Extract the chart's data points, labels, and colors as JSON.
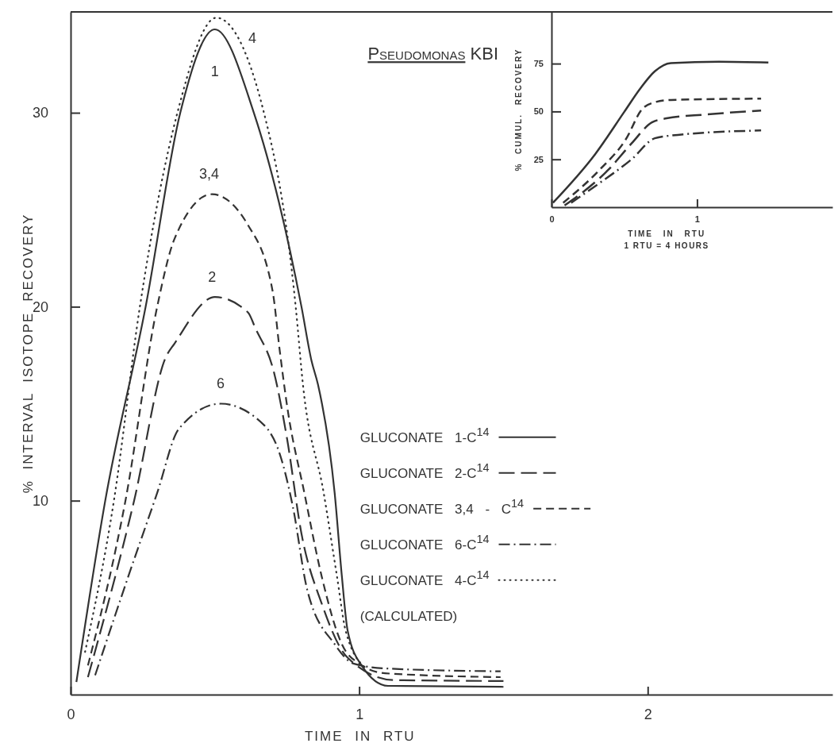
{
  "chart_data": [
    {
      "type": "line",
      "title": "Pseudomonas KBI",
      "xlabel": "TIME IN RTU",
      "ylabel": "% INTERVAL ISOTOPE RECOVERY",
      "xlim": [
        0,
        2.64
      ],
      "ylim": [
        0,
        35.2
      ],
      "xticks": [
        0,
        1,
        2
      ],
      "yticks": [
        10,
        20,
        30
      ],
      "legend": "right",
      "series": [
        {
          "name": "GLUCONATE 1-C$^{14}$",
          "color": "#333333",
          "line_style": "solid",
          "x": [
            0.02,
            0.12,
            0.26,
            0.38,
            0.5,
            0.635,
            0.8,
            0.835,
            0.857,
            0.915,
            0.94,
            0.96,
            1.01,
            1.1,
            1.5
          ],
          "values": [
            0.65,
            10,
            20,
            30,
            34.3,
            30,
            20,
            17.2,
            16,
            10.4,
            6.1,
            3.3,
            1.47,
            0.45,
            0.4
          ]
        },
        {
          "name": "GLUCONATE 2-C$^{14}$",
          "color": "#333333",
          "line_style": "longdash",
          "x": [
            0.06,
            0.22,
            0.33,
            0.36,
            0.5,
            0.615,
            0.64,
            0.705,
            0.75,
            0.8,
            0.87,
            0.96,
            1.12,
            1.5
          ],
          "values": [
            0.9,
            10,
            17.4,
            18.1,
            20.5,
            19.7,
            18.9,
            16.6,
            13.2,
            8.3,
            4.7,
            1.9,
            0.75,
            0.7
          ]
        },
        {
          "name": "GLUCONATE 3,4 - C$^{14}$",
          "color": "#333333",
          "line_style": "dashed",
          "x": [
            0.06,
            0.19,
            0.3,
            0.36,
            0.49,
            0.615,
            0.7,
            0.725,
            0.75,
            0.81,
            0.87,
            0.94,
            1.0,
            1.09,
            1.49
          ],
          "values": [
            1.5,
            10,
            20,
            23.5,
            25.8,
            24.2,
            20.8,
            17.7,
            14.9,
            10.4,
            6.1,
            2.6,
            1.6,
            1.1,
            0.9
          ]
        },
        {
          "name": "GLUCONATE 6-C$^{14}$",
          "color": "#333333",
          "line_style": "dashdot",
          "x": [
            0.085,
            0.2,
            0.3,
            0.375,
            0.52,
            0.67,
            0.725,
            0.77,
            0.82,
            0.915,
            0.98,
            1.09,
            1.49
          ],
          "values": [
            1.0,
            6.1,
            10.4,
            13.7,
            15.0,
            13.9,
            12.4,
            9.7,
            5.4,
            2.6,
            1.6,
            1.35,
            1.2
          ]
        },
        {
          "name": "GLUCONATE 4-C$^{14}$",
          "color": "#333333",
          "line_style": "dotted",
          "x": [
            0.05,
            0.15,
            0.24,
            0.37,
            0.505,
            0.67,
            0.78,
            0.805,
            0.877,
            0.923,
            0.953,
            1.02
          ],
          "values": [
            2.2,
            10,
            20,
            30,
            34.9,
            30,
            20,
            16,
            10.4,
            6.1,
            3.3,
            1.4
          ]
        }
      ],
      "annotations": [
        "1",
        "4",
        "3,4",
        "2",
        "6",
        "(CALCULATED)"
      ]
    },
    {
      "type": "line",
      "xlabel": "TIME IN RTU",
      "ylabel": "% CUMUL. RECOVERY",
      "xlim": [
        0,
        1.93
      ],
      "ylim": [
        0,
        102
      ],
      "xticks": [
        0,
        1
      ],
      "yticks": [
        25,
        50,
        75
      ],
      "series": [
        {
          "color": "#333333",
          "line_style": "solid",
          "x": [
            0.01,
            0.3,
            0.5,
            0.61,
            0.71,
            0.82,
            1.15,
            1.49
          ],
          "values": [
            2.3,
            27.7,
            49.8,
            62,
            71,
            75.3,
            76,
            75.6
          ]
        },
        {
          "color": "#333333",
          "line_style": "dashed",
          "x": [
            0.08,
            0.33,
            0.515,
            0.62,
            0.7,
            0.82,
            1.44
          ],
          "values": [
            2.3,
            19.5,
            36,
            51,
            54.6,
            56,
            56.7
          ]
        },
        {
          "color": "#333333",
          "line_style": "longdash",
          "x": [
            0.09,
            0.39,
            0.55,
            0.69,
            0.79,
            1.06,
            1.44
          ],
          "values": [
            0.9,
            19.5,
            33.3,
            44.3,
            46.4,
            48.4,
            50.5
          ]
        },
        {
          "color": "#333333",
          "line_style": "dashdot",
          "x": [
            0.135,
            0.33,
            0.55,
            0.71,
            0.82,
            1.44
          ],
          "values": [
            2.3,
            12.6,
            25,
            36,
            37.4,
            40.1
          ]
        }
      ],
      "annotations": [
        "1 RTU = 4 HOURS"
      ]
    }
  ]
}
